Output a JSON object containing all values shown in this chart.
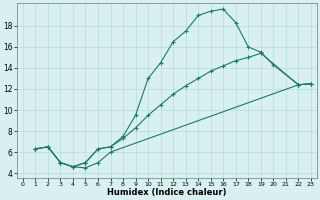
{
  "xlabel": "Humidex (Indice chaleur)",
  "bg_color": "#d8f0f0",
  "line_color": "#1a7a6e",
  "grid_color": "#b8dada",
  "xlim": [
    -0.5,
    23.5
  ],
  "ylim": [
    3.5,
    20.2
  ],
  "xticks": [
    0,
    1,
    2,
    3,
    4,
    5,
    6,
    7,
    8,
    9,
    10,
    11,
    12,
    13,
    14,
    15,
    16,
    17,
    18,
    19,
    20,
    21,
    22,
    23
  ],
  "yticks": [
    4,
    6,
    8,
    10,
    12,
    14,
    16,
    18
  ],
  "line1_x": [
    1,
    2,
    3,
    4,
    5,
    6,
    7,
    8,
    9,
    10,
    11,
    12,
    13,
    14,
    15,
    16,
    17,
    18,
    19,
    20,
    22,
    23
  ],
  "line1_y": [
    6.3,
    6.5,
    5.0,
    4.6,
    5.0,
    6.3,
    6.5,
    7.5,
    9.5,
    13.0,
    14.5,
    16.5,
    17.5,
    19.0,
    19.4,
    19.6,
    18.3,
    16.0,
    15.5,
    14.3,
    12.4,
    12.5
  ],
  "line2_x": [
    1,
    2,
    3,
    4,
    5,
    6,
    7,
    8,
    9,
    10,
    11,
    12,
    13,
    14,
    15,
    16,
    17,
    18,
    19,
    22,
    23
  ],
  "line2_y": [
    6.3,
    6.5,
    5.0,
    4.6,
    5.0,
    6.3,
    6.5,
    7.3,
    8.3,
    9.5,
    10.5,
    11.5,
    12.3,
    13.0,
    13.7,
    14.2,
    14.7,
    15.0,
    15.4,
    12.4,
    12.5
  ],
  "line3_x": [
    1,
    2,
    3,
    4,
    5,
    6,
    7,
    22,
    23
  ],
  "line3_y": [
    6.3,
    6.5,
    5.0,
    4.6,
    4.5,
    5.0,
    6.0,
    12.4,
    12.5
  ]
}
